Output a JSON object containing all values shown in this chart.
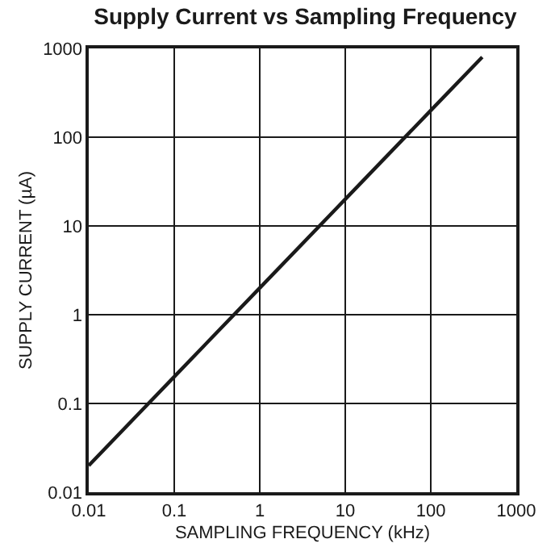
{
  "chart_data": {
    "type": "line",
    "title": "Supply Current vs Sampling Frequency",
    "xlabel": "SAMPLING FREQUENCY (kHz)",
    "ylabel": "SUPPLY CURRENT (µA)",
    "x": [
      0.01,
      0.1,
      1,
      10,
      100,
      400
    ],
    "series": [
      {
        "color": "#1a1a1a",
        "values": [
          0.02,
          0.2,
          2,
          20,
          200,
          800
        ]
      }
    ],
    "log": "xy",
    "xlim": [
      0.01,
      1000
    ],
    "ylim": [
      0.01,
      1000
    ],
    "xticks": [
      0.01,
      0.1,
      1,
      10,
      100,
      1000
    ],
    "yticks": [
      0.01,
      0.1,
      1,
      10,
      100,
      1000
    ],
    "grid": true,
    "legend": false,
    "marker": "none",
    "line_style": "solid"
  }
}
